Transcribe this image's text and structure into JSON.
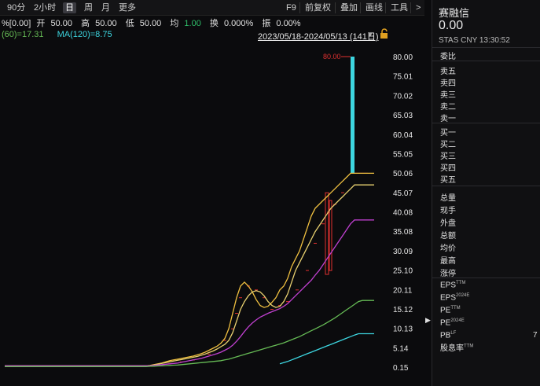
{
  "toolbar": {
    "periods": [
      "90分",
      "2小时",
      "日",
      "周",
      "月",
      "更多"
    ],
    "active_period": "日",
    "tools": [
      "F9",
      "前复权",
      "叠加",
      "画线",
      "工具"
    ],
    "more_arrow": ">"
  },
  "quote": {
    "prefix": "%[0.00]",
    "open_label": "开",
    "open": "50.00",
    "high_label": "高",
    "high": "50.00",
    "low_label": "低",
    "low": "50.00",
    "avg_label": "均",
    "avg": "1.00",
    "turnover_label": "换",
    "turnover": "0.000%",
    "amplitude_label": "振",
    "amplitude": "0.00%"
  },
  "ma": {
    "ma60": "(60)=17.31",
    "ma120": "MA(120)=8.75"
  },
  "date_range": "2023/05/18-2024/05/13 (141日)",
  "colors": {
    "ma60": "#66bb55",
    "ma120": "#3dd6e0",
    "ma_short": "#f0c040",
    "ma_mid": "#e8d070",
    "ma_long": "#c040d0",
    "candle_up": "#e03030",
    "candle_flat": "#3dd6e0"
  },
  "chart_data": {
    "type": "line",
    "yticks": [
      "80.00",
      "75.01",
      "70.02",
      "65.03",
      "60.04",
      "55.05",
      "50.06",
      "45.07",
      "40.08",
      "35.08",
      "30.09",
      "25.10",
      "20.11",
      "15.12",
      "10.13",
      "5.14",
      "0.15"
    ],
    "ylim": [
      0.15,
      80.0
    ],
    "high_annotation": "80.00",
    "x": [
      0,
      25,
      50,
      75,
      100,
      110,
      115,
      120,
      125,
      130,
      135,
      140,
      145,
      150,
      155,
      160,
      165,
      170,
      175,
      180,
      185,
      190,
      195,
      200,
      205,
      210,
      215,
      220,
      225,
      230,
      235,
      240,
      245,
      250,
      255,
      260,
      265,
      270,
      275,
      280,
      285,
      290,
      295,
      300,
      305,
      310,
      315,
      320,
      325,
      330,
      335,
      340,
      345,
      350,
      355,
      360,
      365,
      370,
      375,
      380,
      385,
      390,
      395,
      400,
      405,
      410,
      415,
      420,
      425,
      430,
      435,
      440,
      445,
      450,
      455,
      460,
      465,
      470
    ],
    "series": [
      {
        "key": "ma_short",
        "values": [
          0.5,
          0.5,
          0.5,
          0.5,
          0.5,
          0.5,
          0.5,
          0.5,
          0.5,
          0.5,
          0.5,
          0.5,
          0.5,
          0.5,
          0.5,
          0.5,
          0.5,
          0.5,
          0.5,
          0.5,
          0.6,
          0.8,
          1,
          1.2,
          1.5,
          1.8,
          2,
          2.2,
          2.4,
          2.6,
          2.8,
          3,
          3.3,
          3.6,
          4,
          4.5,
          5,
          5.5,
          6.3,
          7.5,
          10,
          14,
          18,
          21,
          22,
          21,
          19.5,
          17.5,
          16,
          15.5,
          15.8,
          16.8,
          18,
          20,
          21,
          23,
          26,
          28,
          30,
          33,
          36,
          39,
          41,
          42,
          43,
          44,
          45,
          46,
          47,
          48,
          49,
          50,
          50,
          50,
          50,
          50,
          50,
          50
        ]
      },
      {
        "key": "ma_mid",
        "values": [
          0.5,
          0.5,
          0.5,
          0.5,
          0.5,
          0.5,
          0.5,
          0.5,
          0.5,
          0.5,
          0.5,
          0.5,
          0.5,
          0.5,
          0.5,
          0.5,
          0.5,
          0.5,
          0.5,
          0.5,
          0.55,
          0.7,
          0.9,
          1.1,
          1.3,
          1.5,
          1.7,
          1.9,
          2.1,
          2.3,
          2.5,
          2.7,
          2.9,
          3.2,
          3.5,
          3.9,
          4.3,
          4.8,
          5.4,
          6,
          7,
          9,
          12,
          15,
          17,
          18.5,
          19.5,
          19.8,
          19.5,
          18.5,
          17,
          16,
          15.5,
          15.8,
          17,
          19,
          22,
          25,
          27,
          29,
          31,
          33,
          35,
          36.5,
          38,
          39.5,
          41,
          42,
          43,
          44,
          45,
          46,
          47,
          47,
          47,
          47,
          47,
          47
        ]
      },
      {
        "key": "ma_long",
        "values": [
          0.5,
          0.5,
          0.5,
          0.5,
          0.5,
          0.5,
          0.5,
          0.5,
          0.5,
          0.5,
          0.5,
          0.5,
          0.5,
          0.5,
          0.5,
          0.5,
          0.5,
          0.5,
          0.5,
          0.5,
          0.5,
          0.6,
          0.7,
          0.8,
          0.9,
          1,
          1.1,
          1.2,
          1.4,
          1.6,
          1.8,
          2,
          2.2,
          2.4,
          2.7,
          3,
          3.3,
          3.6,
          4,
          4.5,
          5,
          5.8,
          6.8,
          8,
          9.3,
          10.5,
          11.5,
          12.3,
          13,
          13.5,
          14,
          14.4,
          14.8,
          15.2,
          15.8,
          16.5,
          17.5,
          18.5,
          19.5,
          20.5,
          21.5,
          22.5,
          23.8,
          25,
          26.5,
          28,
          29.5,
          31,
          32.5,
          34,
          35.5,
          37,
          38,
          38,
          38,
          38,
          38,
          38
        ]
      },
      {
        "key": "ma60",
        "values": [
          0.3,
          0.3,
          0.3,
          0.3,
          0.3,
          0.3,
          0.3,
          0.3,
          0.3,
          0.3,
          0.3,
          0.3,
          0.3,
          0.3,
          0.3,
          0.3,
          0.3,
          0.3,
          0.3,
          0.3,
          0.35,
          0.4,
          0.45,
          0.5,
          0.55,
          0.6,
          0.65,
          0.7,
          0.8,
          0.9,
          1,
          1.1,
          1.2,
          1.3,
          1.4,
          1.5,
          1.6,
          1.7,
          1.8,
          2,
          2.2,
          2.5,
          2.8,
          3.1,
          3.4,
          3.7,
          4,
          4.3,
          4.6,
          4.9,
          5.2,
          5.5,
          5.8,
          6.1,
          6.4,
          6.8,
          7.2,
          7.6,
          8,
          8.5,
          9,
          9.5,
          10,
          10.5,
          11,
          11.6,
          12.2,
          12.8,
          13.5,
          14.2,
          14.9,
          15.6,
          16.3,
          17,
          17.3,
          17.3,
          17.3,
          17.3
        ]
      },
      {
        "key": "ma120",
        "values": [
          null,
          null,
          null,
          null,
          null,
          null,
          null,
          null,
          null,
          null,
          null,
          null,
          null,
          null,
          null,
          null,
          null,
          null,
          null,
          null,
          null,
          null,
          null,
          null,
          null,
          null,
          null,
          null,
          null,
          null,
          null,
          null,
          null,
          null,
          null,
          null,
          null,
          null,
          null,
          null,
          null,
          null,
          null,
          null,
          null,
          null,
          null,
          null,
          null,
          null,
          null,
          null,
          null,
          1,
          1.3,
          1.6,
          2,
          2.4,
          2.8,
          3.2,
          3.6,
          4,
          4.4,
          4.8,
          5.2,
          5.6,
          6,
          6.4,
          6.8,
          7.2,
          7.6,
          8,
          8.4,
          8.75,
          8.75,
          8.75,
          8.75,
          8.75
        ]
      }
    ]
  },
  "panel": {
    "name": "赛融信",
    "price": "0.00",
    "meta": "STAS  CNY  13:30:52",
    "ratio_label": "委比",
    "sells": [
      "卖五",
      "卖四",
      "卖三",
      "卖二",
      "卖一"
    ],
    "buys": [
      "买一",
      "买二",
      "买三",
      "买四",
      "买五"
    ],
    "stats": [
      "总量",
      "现手",
      "外盘",
      "总额",
      "均价",
      "最高",
      "涨停"
    ],
    "fin": [
      {
        "label": "EPS",
        "sup": "TTM"
      },
      {
        "label": "EPS",
        "sup": "2024E"
      },
      {
        "label": "PE",
        "sup": "TTM"
      },
      {
        "label": "PE",
        "sup": "2024E"
      },
      {
        "label": "PB",
        "sup": "LF"
      },
      {
        "label": "股息率",
        "sup": "TTM"
      }
    ],
    "pb_value": "7"
  }
}
